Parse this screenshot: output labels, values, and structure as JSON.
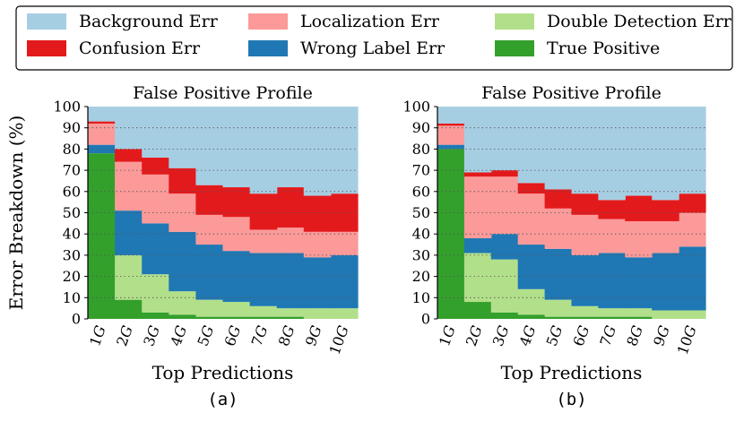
{
  "legend": {
    "items": [
      {
        "label": "Background Err",
        "color": "#a6cee3"
      },
      {
        "label": "Localization Err",
        "color": "#fb9a99"
      },
      {
        "label": "Double Detection Err",
        "color": "#b2df8a"
      },
      {
        "label": "Confusion Err",
        "color": "#e31a1c"
      },
      {
        "label": "Wrong Label Err",
        "color": "#1f78b4"
      },
      {
        "label": "True Positive",
        "color": "#33a02c"
      }
    ]
  },
  "chart_data": [
    {
      "type": "area",
      "title": "False Positive Profile",
      "xlabel": "Top Predictions",
      "ylabel": "Error Breakdown (%)",
      "caption": "(a)",
      "categories": [
        "1G",
        "2G",
        "3G",
        "4G",
        "5G",
        "6G",
        "7G",
        "8G",
        "9G",
        "10G"
      ],
      "ylim": [
        0,
        100
      ],
      "yticks": [
        0,
        10,
        20,
        30,
        40,
        50,
        60,
        70,
        80,
        90,
        100
      ],
      "grid": true,
      "series": [
        {
          "name": "True Positive",
          "values": [
            78,
            9,
            3,
            2,
            1,
            1,
            1,
            1,
            0,
            0
          ]
        },
        {
          "name": "Double Detection Err",
          "values": [
            0,
            21,
            18,
            11,
            8,
            7,
            5,
            4,
            5,
            5
          ]
        },
        {
          "name": "Wrong Label Err",
          "values": [
            4,
            21,
            24,
            28,
            26,
            24,
            25,
            26,
            24,
            25
          ]
        },
        {
          "name": "Localization Err",
          "values": [
            10,
            23,
            23,
            18,
            14,
            16,
            11,
            12,
            12,
            11
          ]
        },
        {
          "name": "Confusion Err",
          "values": [
            1,
            6,
            8,
            12,
            14,
            14,
            17,
            19,
            17,
            18
          ]
        },
        {
          "name": "Background Err",
          "values": [
            7,
            20,
            24,
            29,
            37,
            38,
            41,
            38,
            42,
            41
          ]
        }
      ]
    },
    {
      "type": "area",
      "title": "False Positive Profile",
      "xlabel": "Top Predictions",
      "ylabel": "",
      "caption": "(b)",
      "categories": [
        "1G",
        "2G",
        "3G",
        "4G",
        "5G",
        "6G",
        "7G",
        "8G",
        "9G",
        "10G"
      ],
      "ylim": [
        0,
        100
      ],
      "yticks": [
        0,
        10,
        20,
        30,
        40,
        50,
        60,
        70,
        80,
        90,
        100
      ],
      "grid": true,
      "series": [
        {
          "name": "True Positive",
          "values": [
            80,
            8,
            3,
            2,
            1,
            1,
            1,
            1,
            0,
            0
          ]
        },
        {
          "name": "Double Detection Err",
          "values": [
            0,
            23,
            25,
            12,
            8,
            5,
            4,
            4,
            4,
            4
          ]
        },
        {
          "name": "Wrong Label Err",
          "values": [
            2,
            7,
            12,
            21,
            24,
            24,
            26,
            24,
            27,
            30
          ]
        },
        {
          "name": "Localization Err",
          "values": [
            9,
            29,
            27,
            24,
            19,
            19,
            16,
            17,
            15,
            16
          ]
        },
        {
          "name": "Confusion Err",
          "values": [
            1,
            2,
            3,
            5,
            9,
            10,
            9,
            12,
            10,
            9
          ]
        },
        {
          "name": "Background Err",
          "values": [
            8,
            31,
            30,
            36,
            39,
            41,
            44,
            42,
            44,
            41
          ]
        }
      ]
    }
  ]
}
